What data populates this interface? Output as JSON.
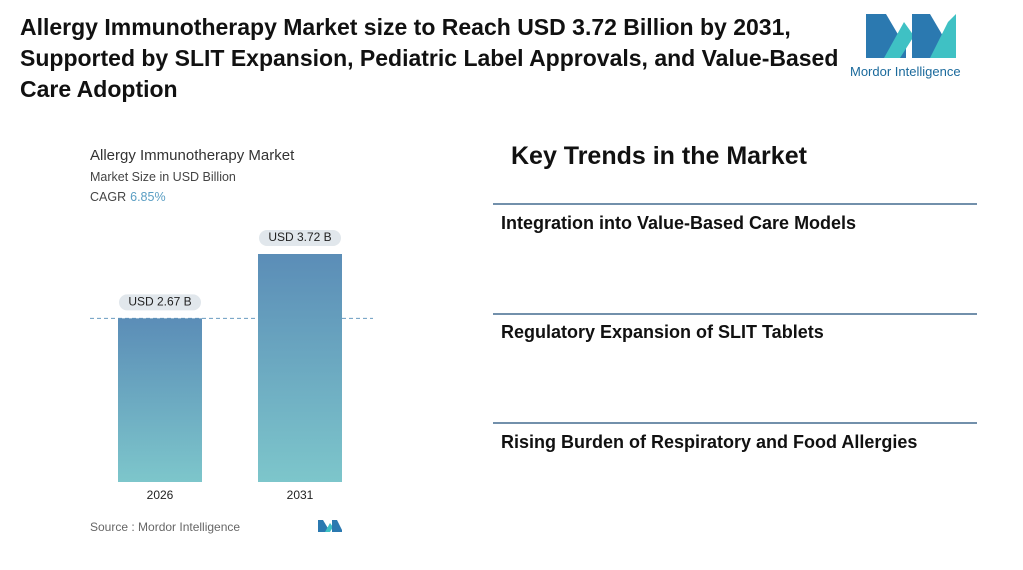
{
  "header": {
    "title": "Allergy Immunotherapy Market size to Reach USD 3.72 Billion by 2031, Supported by SLIT Expansion, Pediatric Label Approvals, and Value-Based Care Adoption",
    "logo_text": "Mordor Intelligence"
  },
  "chart_data": {
    "type": "bar",
    "title": "Allergy Immunotherapy Market",
    "subtitle": "Market Size in USD Billion",
    "cagr": {
      "label": "CAGR",
      "value": "6.85%"
    },
    "categories": [
      "2026",
      "2031"
    ],
    "values": [
      2.67,
      3.72
    ],
    "value_labels": [
      "USD 2.67 B",
      "USD 3.72 B"
    ],
    "source": "Source : Mordor Intelligence"
  },
  "key_trends": {
    "title": "Key Trends in the Market",
    "items": [
      "Integration into Value-Based Care Models",
      "Regulatory Expansion of SLIT Tablets",
      "Rising Burden of Respiratory and Food Allergies"
    ]
  }
}
